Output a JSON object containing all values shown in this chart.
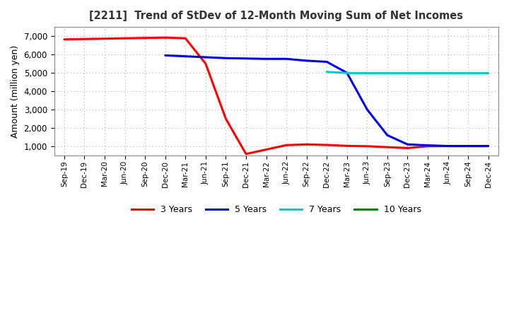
{
  "title": "[2211]  Trend of StDev of 12-Month Moving Sum of Net Incomes",
  "ylabel": "Amount (million yen)",
  "background_color": "#ffffff",
  "grid_color": "#aaaaaa",
  "xlabels": [
    "Sep-19",
    "Dec-19",
    "Mar-20",
    "Jun-20",
    "Sep-20",
    "Dec-20",
    "Mar-21",
    "Jun-21",
    "Sep-21",
    "Dec-21",
    "Mar-22",
    "Jun-22",
    "Sep-22",
    "Dec-22",
    "Mar-23",
    "Jun-23",
    "Sep-23",
    "Dec-23",
    "Mar-24",
    "Jun-24",
    "Sep-24",
    "Dec-24"
  ],
  "ylim": [
    500,
    7500
  ],
  "yticks": [
    1000,
    2000,
    3000,
    4000,
    5000,
    6000,
    7000
  ],
  "series": {
    "3 Years": {
      "color": "#ff0000",
      "x": [
        0,
        1,
        2,
        3,
        4,
        5,
        6,
        7,
        8,
        9,
        10,
        11,
        12,
        13,
        14,
        15,
        16,
        17,
        18,
        19,
        20,
        21
      ],
      "y": [
        6820,
        6840,
        6860,
        6880,
        6900,
        6920,
        6880,
        5500,
        2500,
        580,
        820,
        1060,
        1100,
        1070,
        1020,
        1000,
        950,
        900,
        1000,
        1010,
        1010,
        1010
      ]
    },
    "5 Years": {
      "color": "#0000ee",
      "x": [
        5,
        6,
        7,
        8,
        9,
        10,
        11,
        12,
        13,
        14,
        15,
        16,
        17,
        18,
        19,
        20,
        21
      ],
      "y": [
        5950,
        5900,
        5850,
        5800,
        5780,
        5760,
        5760,
        5660,
        5600,
        5000,
        3000,
        1600,
        1100,
        1050,
        1010,
        1010,
        1010
      ]
    },
    "7 Years": {
      "color": "#00cccc",
      "x": [
        13,
        14,
        15,
        16,
        17,
        18,
        19,
        20,
        21
      ],
      "y": [
        5050,
        4990,
        4980,
        4980,
        4980,
        4980,
        4980,
        4980,
        4980
      ]
    },
    "10 Years": {
      "color": "#008800",
      "x": [],
      "y": []
    }
  },
  "legend_entries": [
    "3 Years",
    "5 Years",
    "7 Years",
    "10 Years"
  ],
  "legend_colors": [
    "#ff0000",
    "#0000ee",
    "#00cccc",
    "#008800"
  ]
}
